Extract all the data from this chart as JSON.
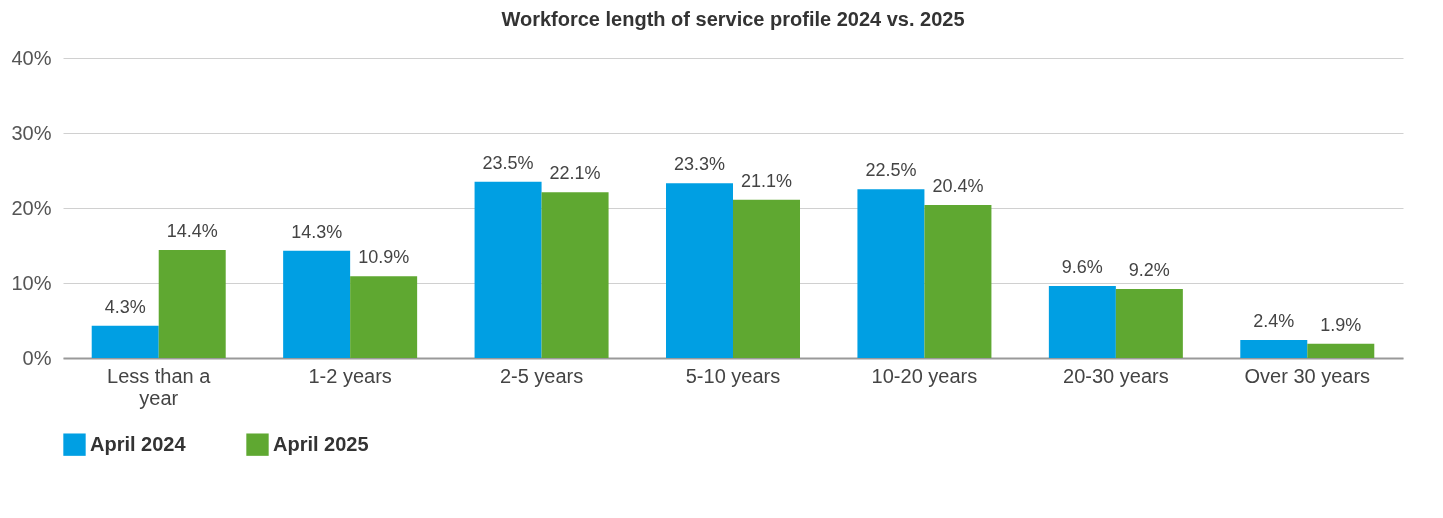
{
  "chart_data": {
    "type": "bar",
    "title": "Workforce length of service profile 2024 vs. 2025",
    "categories": [
      "Less than a year",
      "1-2 years",
      "2-5 years",
      "5-10 years",
      "10-20 years",
      "20-30 years",
      "Over 30 years"
    ],
    "series": [
      {
        "name": "April 2024",
        "color": "#009fe3",
        "values": [
          4.3,
          14.3,
          23.5,
          23.3,
          22.5,
          9.6,
          2.4
        ],
        "value_labels": [
          "4.3%",
          "14.3%",
          "23.5%",
          "23.3%",
          "22.5%",
          "9.6%",
          "2.4%"
        ]
      },
      {
        "name": "April 2025",
        "color": "#5fa831",
        "values": [
          14.4,
          10.9,
          22.1,
          21.1,
          20.4,
          9.2,
          1.9
        ],
        "value_labels": [
          "14.4%",
          "10.9%",
          "22.1%",
          "21.1%",
          "20.4%",
          "9.2%",
          "1.9%"
        ]
      }
    ],
    "ylim": [
      0,
      40
    ],
    "yticks": [
      {
        "value": 0,
        "label": "0%"
      },
      {
        "value": 10,
        "label": "10%"
      },
      {
        "value": 20,
        "label": "20%"
      },
      {
        "value": 30,
        "label": "30%"
      },
      {
        "value": 40,
        "label": "40%"
      }
    ],
    "grid": "y",
    "legend": "bottom left"
  }
}
